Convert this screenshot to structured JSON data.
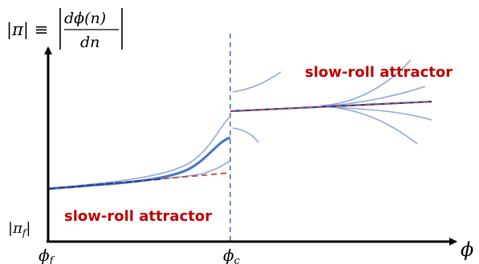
{
  "figure": {
    "axes": {
      "y_label": {
        "prefix": "|π| ≡",
        "numerator": "dϕ(n)",
        "denominator": "dn"
      },
      "x_label": "ϕ",
      "x_ticks": {
        "phi_f": {
          "base": "ϕ",
          "sub": "f"
        },
        "phi_c": {
          "base": "ϕ",
          "sub": "c"
        }
      },
      "y_tick": {
        "text": "|π",
        "sub": "f",
        "close": "|"
      }
    },
    "annotations": {
      "upper": "slow-roll attractor",
      "lower": "slow-roll attractor"
    },
    "colors": {
      "axis": "#000000",
      "thin_curves": "#8fa9d8",
      "thick_curve": "#4472c4",
      "attractor_dashed": "#c0504d",
      "attractor_solid": "#1f3a93",
      "vline": "#4472c4",
      "label_red": "#c00000"
    }
  }
}
